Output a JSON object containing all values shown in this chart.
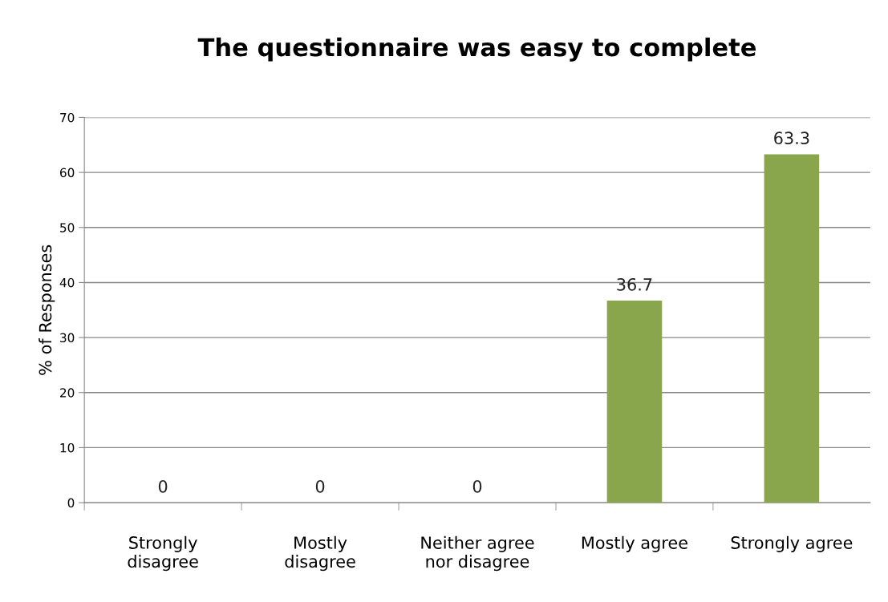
{
  "chart_data": {
    "type": "bar",
    "title": "The questionnaire was easy to complete",
    "ylabel": "% of Responses",
    "categories": [
      "Strongly\ndisagree",
      "Mostly\ndisagree",
      "Neither agree\nnor disagree",
      "Mostly agree",
      "Strongly agree"
    ],
    "values": [
      0,
      0,
      0,
      36.7,
      63.3
    ],
    "color": "#8aa64c",
    "ylim": [
      0,
      70
    ],
    "yticks": [
      0,
      10,
      20,
      30,
      40,
      50,
      60,
      70
    ],
    "grid": "y",
    "data_labels": true
  }
}
